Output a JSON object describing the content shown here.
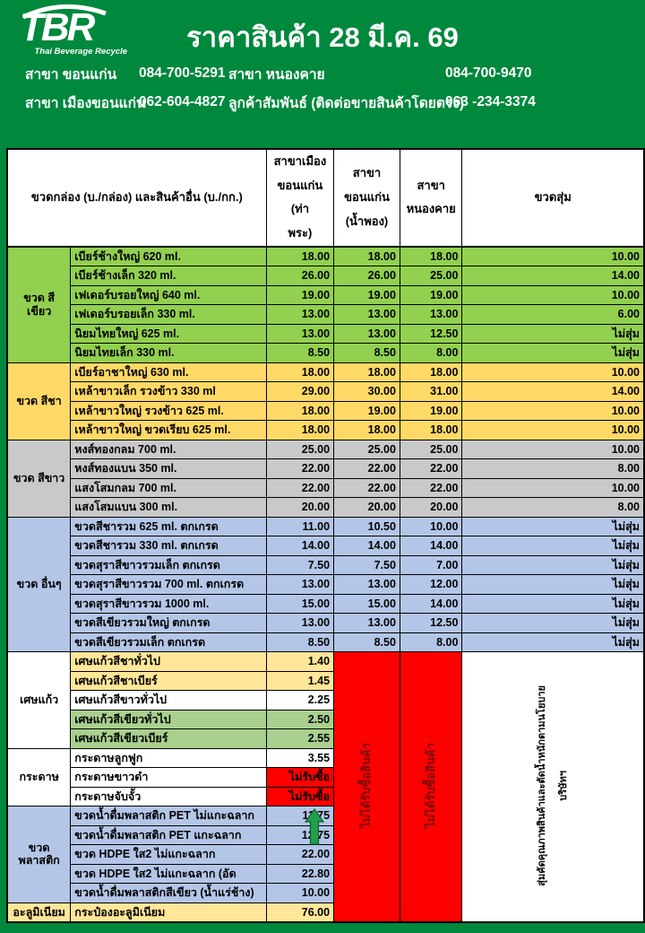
{
  "header": {
    "logo": "TBR",
    "logo_subtitle": "Thai Beverage Recycle",
    "title": "ราคาสินค้า 28 มี.ค. 69",
    "contacts": [
      {
        "branch1": "สาขา ขอนแก่น",
        "phone1": "084-700-5291",
        "branch2": "สาขา หนองคาย",
        "phone2": "084-700-9470"
      },
      {
        "branch1": "สาขา เมืองขอนแก่น",
        "phone1": "062-604-4827",
        "branch2": "ลูกค้าสัมพันธ์ (ติดต่อขายสินค้าโดยตรง)",
        "phone2": "063 -234-3374"
      }
    ]
  },
  "colors": {
    "page_background": "#00883D",
    "row_green": "#92D050",
    "row_amber": "#FFD966",
    "row_gray": "#C9C9C9",
    "row_blue": "#B4C6E7",
    "row_cream": "#FFE699",
    "row_cullet_green": "#A9D08E",
    "no_buy_red": "#FF0000",
    "no_random_text": "#FFC000",
    "red_note_text": "#7B0C0C",
    "arrow_green": "#21A04B"
  },
  "table": {
    "columns": [
      "ขวดกล่อง (บ./กล่อง) และสินค้าอื่น (บ./กก.)",
      "สาขาเมือง\nขอนแก่น (ท่า\nพระ)",
      "สาขา\nขอนแก่น\n(น้ำพอง)",
      "สาขา\nหนองคาย",
      "ขวดสุ่ม"
    ],
    "no_random_label": "ไม่สุ่ม",
    "no_buy_label": "ไม่รับซื้อ",
    "not_buying_note": "ไม่ได้รับซื้อสินค้า",
    "side_note": "สุ่มคัดคุณภาพสินค้าและตัดน้ำหนักตามนโยบาย",
    "side_note2": "บริษัทฯ",
    "groups": [
      {
        "label": "ขวด สีเขียว",
        "color": "green",
        "section": "upper",
        "rows": [
          {
            "name": "เบียร์ช้างใหญ่ 620 ml.",
            "prices": [
              "18.00",
              "18.00",
              "18.00",
              "10.00"
            ]
          },
          {
            "name": "เบียร์ช้างเล็ก 320 ml.",
            "prices": [
              "26.00",
              "26.00",
              "25.00",
              "14.00"
            ]
          },
          {
            "name": "เฟเดอร์บรอยใหญ่ 640 ml.",
            "prices": [
              "19.00",
              "19.00",
              "19.00",
              "10.00"
            ],
            "sep": true
          },
          {
            "name": "เฟเดอร์บรอยเล็ก 330 ml.",
            "prices": [
              "13.00",
              "13.00",
              "13.00",
              "6.00"
            ]
          },
          {
            "name": "นิยมไทยใหญ่  625 ml.",
            "prices": [
              "13.00",
              "13.00",
              "12.50",
              "ไม่สุ่ม"
            ],
            "sep": true
          },
          {
            "name": "นิยมไทยเล็ก  330 ml.",
            "prices": [
              "8.50",
              "8.50",
              "8.00",
              "ไม่สุ่ม"
            ]
          }
        ]
      },
      {
        "label": "ขวด สีชา",
        "color": "amber",
        "section": "upper",
        "rows": [
          {
            "name": "เบียร์อาชาใหญ่ 630 ml.",
            "prices": [
              "18.00",
              "18.00",
              "18.00",
              "10.00"
            ]
          },
          {
            "name": "เหล้าขาวเล็ก รวงข้าว 330 ml",
            "prices": [
              "29.00",
              "30.00",
              "31.00",
              "14.00"
            ],
            "sep": true
          },
          {
            "name": "เหล้าขาวใหญ่ รวงข้าว 625 ml.",
            "prices": [
              "18.00",
              "19.00",
              "19.00",
              "10.00"
            ],
            "sep": true
          },
          {
            "name": "เหล้าขาวใหญ่ ขวดเรียบ 625 ml.",
            "prices": [
              "18.00",
              "18.00",
              "18.00",
              "10.00"
            ]
          }
        ]
      },
      {
        "label": "ขวด สีขาว",
        "color": "gray",
        "section": "upper",
        "rows": [
          {
            "name": "หงส์ทองกลม 700 ml.",
            "prices": [
              "25.00",
              "25.00",
              "25.00",
              "10.00"
            ]
          },
          {
            "name": "หงส์ทองแบน 350 ml.",
            "prices": [
              "22.00",
              "22.00",
              "22.00",
              "8.00"
            ]
          },
          {
            "name": "แสงโสมกลม 700 ml.",
            "prices": [
              "22.00",
              "22.00",
              "22.00",
              "10.00"
            ],
            "sep": true
          },
          {
            "name": "แสงโสมแบน 300 ml.",
            "prices": [
              "20.00",
              "20.00",
              "20.00",
              "8.00"
            ]
          }
        ]
      },
      {
        "label": "ขวด อื่นๆ",
        "color": "blue",
        "section": "upper",
        "rows": [
          {
            "name": "ขวดสีชารวม 625 ml. ตกเกรด",
            "prices": [
              "11.00",
              "10.50",
              "10.00",
              "ไม่สุ่ม"
            ]
          },
          {
            "name": "ขวดสีชารวม 330 ml. ตกเกรด",
            "prices": [
              "14.00",
              "14.00",
              "14.00",
              "ไม่สุ่ม"
            ]
          },
          {
            "name": "ขวดสุราสีขาวรวมเล็ก ตกเกรด",
            "prices": [
              "7.50",
              "7.50",
              "7.00",
              "ไม่สุ่ม"
            ],
            "sep": true
          },
          {
            "name": "ขวดสุราสีขาวรวม 700 ml. ตกเกรด",
            "prices": [
              "13.00",
              "13.00",
              "12.00",
              "ไม่สุ่ม"
            ]
          },
          {
            "name": "ขวดสุราสีขาวรวม 1000 ml.",
            "prices": [
              "15.00",
              "15.00",
              "14.00",
              "ไม่สุ่ม"
            ]
          },
          {
            "name": "ขวดสีเขียวรวมใหญ่ ตกเกรด",
            "prices": [
              "13.00",
              "13.00",
              "12.50",
              "ไม่สุ่ม"
            ]
          },
          {
            "name": "ขวดสีเขียวรวมเล็ก  ตกเกรด",
            "prices": [
              "8.50",
              "8.50",
              "8.00",
              "ไม่สุ่ม"
            ]
          }
        ]
      },
      {
        "label": "เศษแก้ว",
        "color": "white",
        "section": "lower",
        "rows": [
          {
            "name": "เศษแก้วสีชาทั่วไป",
            "price": "1.40",
            "bg": "cream"
          },
          {
            "name": "เศษแก้วสีชาเบียร์",
            "price": "1.45",
            "bg": "cream",
            "sep": true
          },
          {
            "name": "เศษแก้วสีขาวทั่วไป",
            "price": "2.25",
            "bg": "white"
          },
          {
            "name": "เศษแก้วสีเขียวทั่วไป",
            "price": "2.50",
            "bg": "cullet"
          },
          {
            "name": "เศษแก้วสีเขียวเบียร์",
            "price": "2.55",
            "bg": "cullet"
          }
        ]
      },
      {
        "label": "กระดาษ",
        "color": "white",
        "section": "lower",
        "rows": [
          {
            "name": "กระดาษลูกฟูก",
            "price": "3.55",
            "bg": "white"
          },
          {
            "name": "กระดาษขาวดำ",
            "price": "ไม่รับซื้อ",
            "bg": "white",
            "no_buy": true
          },
          {
            "name": "กระดาษจับจั้ว",
            "price": "ไม่รับซื้อ",
            "bg": "white",
            "no_buy": true
          }
        ]
      },
      {
        "label": "ขวด พลาสติก",
        "color": "blue",
        "section": "lower",
        "rows": [
          {
            "name": "ขวดน้ำดื่มพลาสติก PET ไม่แกะฉลาก",
            "price": "11.75",
            "bg": "blue",
            "arrow": true
          },
          {
            "name": "ขวดน้ำดื่มพลาสติก PET แกะฉลาก",
            "price": "12.75",
            "bg": "blue"
          },
          {
            "name": "ขวด HDPE ใส2 ไม่แกะฉลาก",
            "price": "22.00",
            "bg": "blue"
          },
          {
            "name": "ขวด HDPE ใส2 ไม่แกะฉลาก (อัด",
            "price": "22.80",
            "bg": "blue"
          },
          {
            "name": "ขวดน้ำดื่มพลาสติกสีเขียว (น้ำแร่ช้าง)",
            "price": "10.00",
            "bg": "blue"
          }
        ]
      },
      {
        "label": "อะลูมิเนียม",
        "color": "cream",
        "section": "lower",
        "rows": [
          {
            "name": "กระป๋องอะลูมิเนียม",
            "price": "76.00",
            "bg": "cream"
          }
        ]
      }
    ]
  }
}
